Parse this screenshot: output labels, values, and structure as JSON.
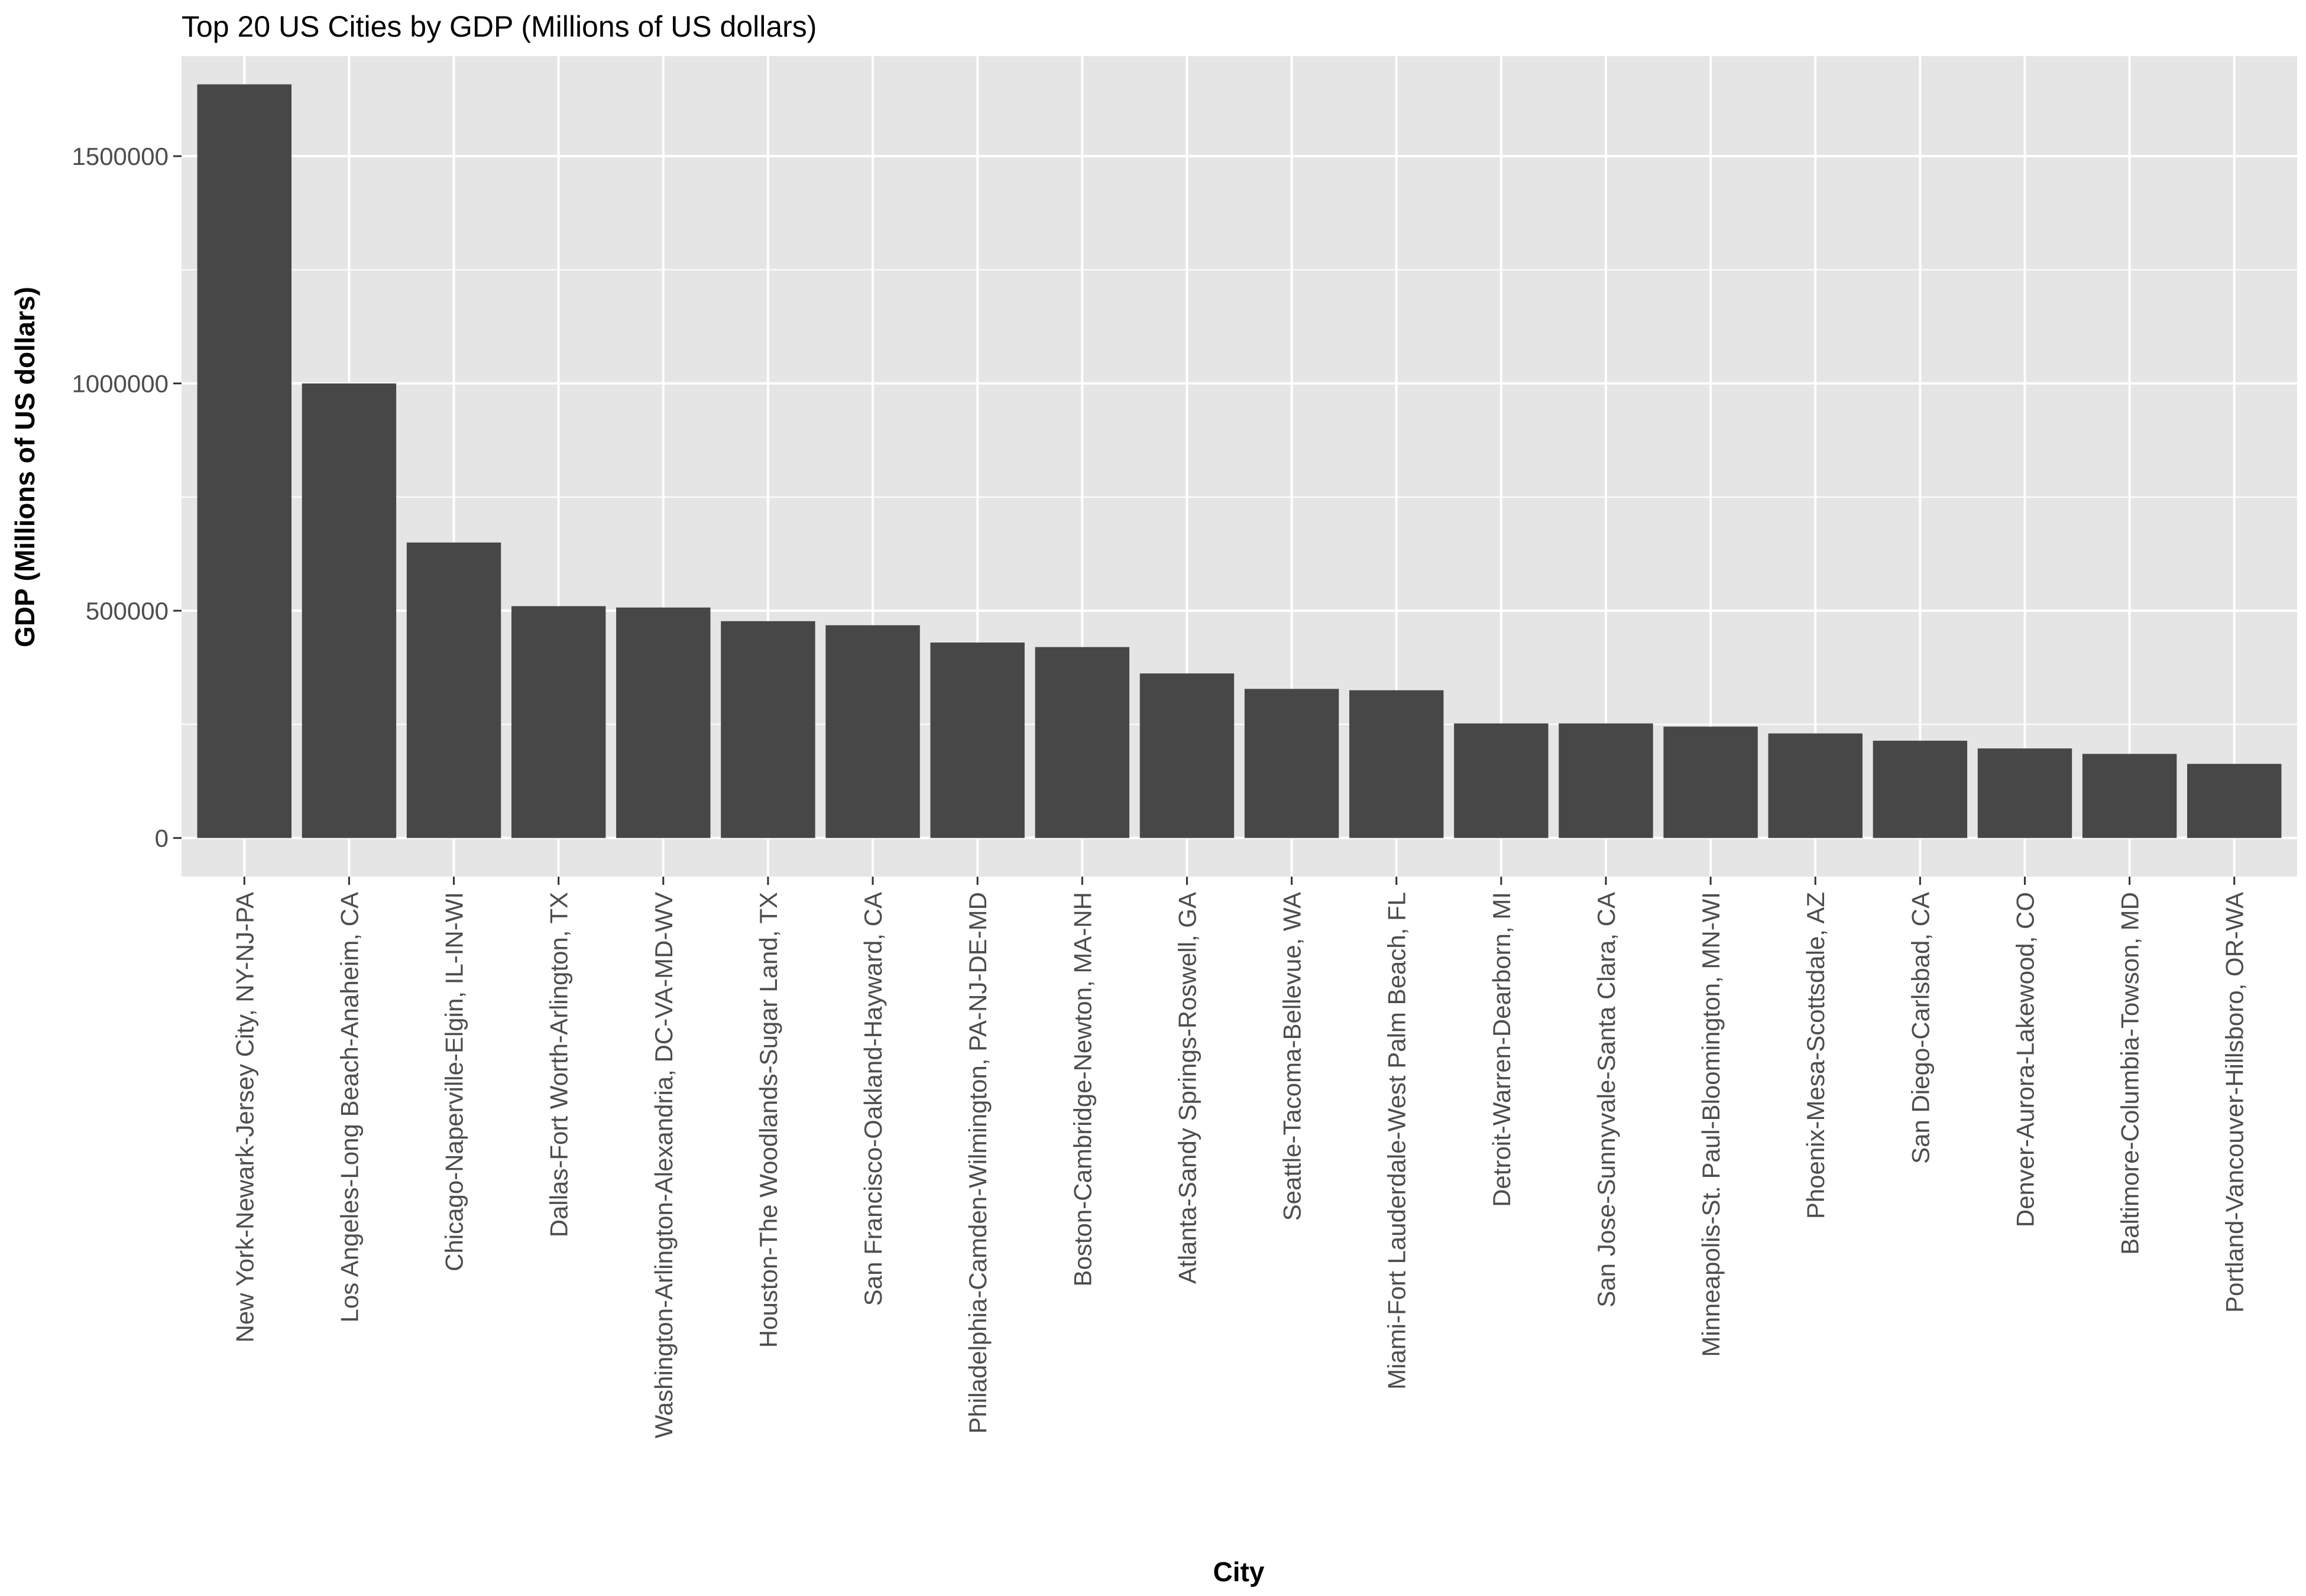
{
  "chart_data": {
    "type": "bar",
    "title": "Top 20 US Cities by GDP (Millions of US dollars)",
    "xlabel": "City",
    "ylabel": "GDP (Millions of US dollars)",
    "ylim": [
      -85000,
      1720000
    ],
    "yticks": [
      0,
      500000,
      1000000,
      1500000
    ],
    "ytick_labels": [
      "0",
      "500000",
      "1000000",
      "1500000"
    ],
    "grid": true,
    "legend": "none",
    "bar_color": "#474747",
    "panel_color": "#e5e5e5",
    "grid_color": "#ffffff",
    "categories": [
      "New York-Newark-Jersey City, NY-NJ-PA",
      "Los Angeles-Long Beach-Anaheim, CA",
      "Chicago-Naperville-Elgin, IL-IN-WI",
      "Dallas-Fort Worth-Arlington, TX",
      "Washington-Arlington-Alexandria, DC-VA-MD-WV",
      "Houston-The Woodlands-Sugar Land, TX",
      "San Francisco-Oakland-Hayward, CA",
      "Philadelphia-Camden-Wilmington, PA-NJ-DE-MD",
      "Boston-Cambridge-Newton, MA-NH",
      "Atlanta-Sandy Springs-Roswell, GA",
      "Seattle-Tacoma-Bellevue, WA",
      "Miami-Fort Lauderdale-West Palm Beach, FL",
      "Detroit-Warren-Dearborn, MI",
      "San Jose-Sunnyvale-Santa Clara, CA",
      "Minneapolis-St. Paul-Bloomington, MN-WI",
      "Phoenix-Mesa-Scottsdale, AZ",
      "San Diego-Carlsbad, CA",
      "Denver-Aurora-Lakewood, CO",
      "Baltimore-Columbia-Towson, MD",
      "Portland-Vancouver-Hillsboro, OR-WA"
    ],
    "values": [
      1658000,
      1000000,
      650000,
      510000,
      507000,
      477000,
      468000,
      430000,
      420000,
      362000,
      328000,
      325000,
      252000,
      252000,
      245000,
      230000,
      214000,
      197000,
      185000,
      163000
    ]
  }
}
